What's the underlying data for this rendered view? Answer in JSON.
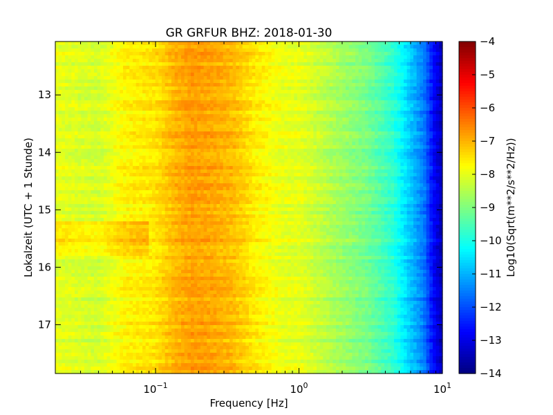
{
  "chart_data": {
    "type": "heatmap",
    "title": "GR GRFUR BHZ: 2018-01-30",
    "xlabel": "Frequency [Hz]",
    "ylabel": "Lokalzeit (UTC + 1 Stunde)",
    "x_scale": "log",
    "xlim": [
      0.02,
      10
    ],
    "ylim": [
      12.07,
      17.85
    ],
    "y_inverted": true,
    "x_ticks": [
      {
        "value": 0.1,
        "base": "10",
        "exp": "−1"
      },
      {
        "value": 1,
        "base": "10",
        "exp": "0"
      },
      {
        "value": 10,
        "base": "10",
        "exp": "1"
      }
    ],
    "y_ticks": [
      {
        "value": 13,
        "label": "13"
      },
      {
        "value": 14,
        "label": "14"
      },
      {
        "value": 15,
        "label": "15"
      },
      {
        "value": 16,
        "label": "16"
      },
      {
        "value": 17,
        "label": "17"
      }
    ],
    "colorbar": {
      "label": "Log10(Sqrt(m**2/s**2/Hz))",
      "colormap": "jet",
      "range": [
        -14,
        -4
      ],
      "ticks": [
        "−4",
        "−5",
        "−6",
        "−7",
        "−8",
        "−9",
        "−10",
        "−11",
        "−12",
        "−13",
        "−14"
      ],
      "tick_values": [
        -4,
        -5,
        -6,
        -7,
        -8,
        -9,
        -10,
        -11,
        -12,
        -13,
        -14
      ]
    },
    "spectrum_profile": {
      "frequency_hz": [
        0.02,
        0.04,
        0.06,
        0.08,
        0.1,
        0.14,
        0.18,
        0.25,
        0.35,
        0.5,
        0.8,
        1.0,
        1.5,
        2.0,
        3.0,
        4.5,
        6.0,
        7.5,
        8.5,
        10
      ],
      "log10_psd": [
        -8.0,
        -8.2,
        -7.7,
        -7.6,
        -7.5,
        -7.0,
        -6.8,
        -6.9,
        -7.1,
        -7.6,
        -8.0,
        -8.0,
        -8.4,
        -8.7,
        -9.1,
        -9.8,
        -10.8,
        -11.6,
        -12.6,
        -13.5
      ]
    }
  }
}
